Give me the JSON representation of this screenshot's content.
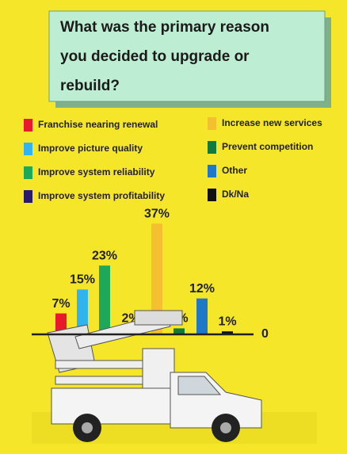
{
  "chart_data": {
    "type": "bar",
    "title": "What was the primary reason you decided to upgrade or rebuild?",
    "categories": [
      "Franchise nearing renewal",
      "Improve picture quality",
      "Improve system reliability",
      "Improve system profitability",
      "Increase new services",
      "Prevent competition",
      "Other",
      "Dk/Na"
    ],
    "values": [
      7,
      15,
      23,
      2,
      37,
      2,
      12,
      1
    ],
    "value_labels": [
      "7%",
      "15%",
      "23%",
      "2%",
      "37%",
      "2%",
      "12%",
      "1%"
    ],
    "colors": [
      "#e8192c",
      "#2fb4ef",
      "#1ea85a",
      "#2a1a6e",
      "#f5c030",
      "#127a3a",
      "#1f78c8",
      "#111111"
    ],
    "ylim": [
      0,
      40
    ],
    "yticks": [
      0
    ]
  }
}
